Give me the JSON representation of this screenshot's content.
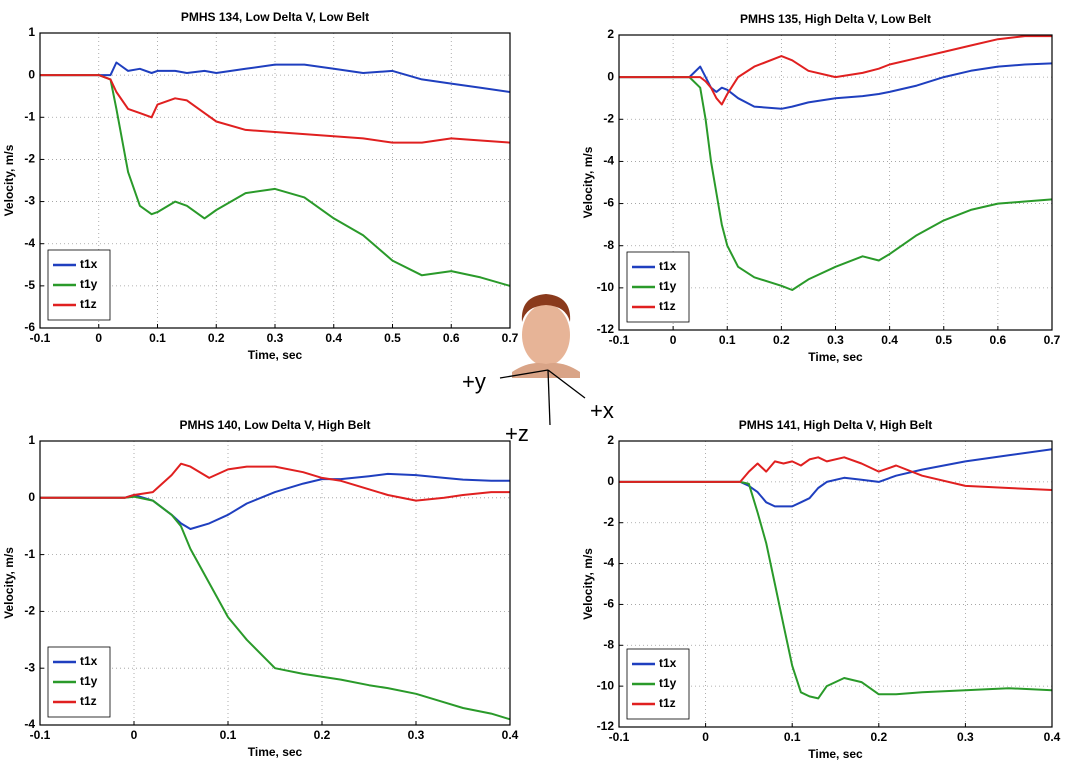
{
  "chart_data": [
    {
      "type": "line",
      "title": "PMHS 134, Low Delta V, Low Belt",
      "x_label": "Time, sec",
      "y_label": "Velocity, m/s",
      "x": [
        -0.1,
        0,
        0.02,
        0.03,
        0.05,
        0.07,
        0.09,
        0.1,
        0.13,
        0.15,
        0.18,
        0.2,
        0.25,
        0.3,
        0.35,
        0.4,
        0.45,
        0.5,
        0.55,
        0.6,
        0.65,
        0.7
      ],
      "series": [
        {
          "name": "t1x",
          "color": "#1f3fbf",
          "values": [
            0,
            0,
            0,
            0.3,
            0.1,
            0.15,
            0.05,
            0.1,
            0.1,
            0.05,
            0.1,
            0.05,
            0.15,
            0.25,
            0.25,
            0.15,
            0.05,
            0.1,
            -0.1,
            -0.2,
            -0.3,
            -0.4
          ]
        },
        {
          "name": "t1y",
          "color": "#2a9a2a",
          "values": [
            0,
            0,
            -0.1,
            -0.8,
            -2.3,
            -3.1,
            -3.3,
            -3.25,
            -3,
            -3.1,
            -3.4,
            -3.2,
            -2.8,
            -2.7,
            -2.9,
            -3.4,
            -3.8,
            -4.4,
            -4.75,
            -4.65,
            -4.8,
            -5
          ]
        },
        {
          "name": "t1z",
          "color": "#e02020",
          "values": [
            0,
            0,
            -0.1,
            -0.4,
            -0.8,
            -0.9,
            -1,
            -0.7,
            -0.55,
            -0.6,
            -0.9,
            -1.1,
            -1.3,
            -1.35,
            -1.4,
            -1.45,
            -1.5,
            -1.6,
            -1.6,
            -1.5,
            -1.55,
            -1.6
          ]
        }
      ],
      "xlim": [
        -0.1,
        0.7
      ],
      "xticks": [
        -0.1,
        0,
        0.1,
        0.2,
        0.3,
        0.4,
        0.5,
        0.6,
        0.7
      ],
      "ylim": [
        -6,
        1
      ],
      "yticks": [
        -6,
        -5,
        -4,
        -3,
        -2,
        -1,
        0,
        1
      ],
      "grid": true,
      "legend": "lower left"
    },
    {
      "type": "line",
      "title": "PMHS 135, High Delta V, Low Belt",
      "x_label": "Time, sec",
      "y_label": "Velocity, m/s",
      "x": [
        -0.1,
        0,
        0.03,
        0.05,
        0.06,
        0.07,
        0.08,
        0.09,
        0.1,
        0.12,
        0.15,
        0.2,
        0.22,
        0.25,
        0.3,
        0.35,
        0.38,
        0.4,
        0.45,
        0.5,
        0.55,
        0.6,
        0.65,
        0.7
      ],
      "series": [
        {
          "name": "t1x",
          "color": "#1f3fbf",
          "values": [
            0,
            0,
            0,
            0.5,
            0,
            -0.5,
            -0.7,
            -0.5,
            -0.6,
            -1,
            -1.4,
            -1.5,
            -1.4,
            -1.2,
            -1,
            -0.9,
            -0.8,
            -0.7,
            -0.4,
            0,
            0.3,
            0.5,
            0.6,
            0.65
          ]
        },
        {
          "name": "t1y",
          "color": "#2a9a2a",
          "values": [
            0,
            0,
            0,
            -0.5,
            -2,
            -4,
            -5.5,
            -7,
            -8,
            -9,
            -9.5,
            -9.9,
            -10.1,
            -9.6,
            -9,
            -8.5,
            -8.7,
            -8.4,
            -7.5,
            -6.8,
            -6.3,
            -6,
            -5.9,
            -5.8
          ]
        },
        {
          "name": "t1z",
          "color": "#e02020",
          "values": [
            0,
            0,
            0,
            0,
            -0.2,
            -0.5,
            -1,
            -1.3,
            -0.8,
            0,
            0.5,
            1,
            0.8,
            0.3,
            0,
            0.2,
            0.4,
            0.6,
            0.9,
            1.2,
            1.5,
            1.8,
            1.95,
            1.95
          ]
        }
      ],
      "xlim": [
        -0.1,
        0.7
      ],
      "xticks": [
        -0.1,
        0,
        0.1,
        0.2,
        0.3,
        0.4,
        0.5,
        0.6,
        0.7
      ],
      "ylim": [
        -12,
        2
      ],
      "yticks": [
        -12,
        -10,
        -8,
        -6,
        -4,
        -2,
        0,
        2
      ],
      "grid": true,
      "legend": "lower left"
    },
    {
      "type": "line",
      "title": "PMHS 140, Low Delta V, High Belt",
      "x_label": "Time, sec",
      "y_label": "Velocity, m/s",
      "x": [
        -0.1,
        -0.01,
        0,
        0.02,
        0.04,
        0.05,
        0.06,
        0.08,
        0.1,
        0.12,
        0.15,
        0.18,
        0.2,
        0.22,
        0.25,
        0.27,
        0.3,
        0.33,
        0.35,
        0.38,
        0.4
      ],
      "series": [
        {
          "name": "t1x",
          "color": "#1f3fbf",
          "values": [
            0,
            0,
            0.05,
            -0.05,
            -0.3,
            -0.45,
            -0.55,
            -0.45,
            -0.3,
            -0.1,
            0.1,
            0.25,
            0.33,
            0.33,
            0.38,
            0.42,
            0.4,
            0.35,
            0.32,
            0.3,
            0.3
          ]
        },
        {
          "name": "t1y",
          "color": "#2a9a2a",
          "values": [
            0,
            0,
            0.02,
            -0.05,
            -0.3,
            -0.5,
            -0.9,
            -1.5,
            -2.1,
            -2.5,
            -3,
            -3.1,
            -3.15,
            -3.2,
            -3.3,
            -3.35,
            -3.45,
            -3.6,
            -3.7,
            -3.8,
            -3.9
          ]
        },
        {
          "name": "t1z",
          "color": "#e02020",
          "values": [
            0,
            0,
            0.05,
            0.1,
            0.4,
            0.6,
            0.55,
            0.35,
            0.5,
            0.55,
            0.55,
            0.45,
            0.35,
            0.3,
            0.15,
            0.05,
            -0.05,
            0,
            0.05,
            0.1,
            0.1
          ]
        }
      ],
      "xlim": [
        -0.1,
        0.4
      ],
      "xticks": [
        -0.1,
        0,
        0.1,
        0.2,
        0.3,
        0.4
      ],
      "ylim": [
        -4,
        1
      ],
      "yticks": [
        -4,
        -3,
        -2,
        -1,
        0,
        1
      ],
      "grid": true,
      "legend": "lower left"
    },
    {
      "type": "line",
      "title": "PMHS 141, High Delta V, High Belt",
      "x_label": "Time, sec",
      "y_label": "Velocity, m/s",
      "x": [
        -0.1,
        0,
        0.04,
        0.05,
        0.06,
        0.07,
        0.08,
        0.09,
        0.1,
        0.11,
        0.12,
        0.13,
        0.14,
        0.16,
        0.18,
        0.2,
        0.22,
        0.25,
        0.3,
        0.35,
        0.4
      ],
      "series": [
        {
          "name": "t1x",
          "color": "#1f3fbf",
          "values": [
            0,
            0,
            0,
            -0.2,
            -0.5,
            -1,
            -1.2,
            -1.2,
            -1.2,
            -1,
            -0.8,
            -0.3,
            0,
            0.2,
            0.1,
            0,
            0.3,
            0.6,
            1,
            1.3,
            1.6
          ]
        },
        {
          "name": "t1y",
          "color": "#2a9a2a",
          "values": [
            0,
            0,
            0,
            -0.1,
            -1.5,
            -3,
            -5,
            -7,
            -9,
            -10.3,
            -10.5,
            -10.6,
            -10,
            -9.6,
            -9.8,
            -10.4,
            -10.4,
            -10.3,
            -10.2,
            -10.1,
            -10.2
          ]
        },
        {
          "name": "t1z",
          "color": "#e02020",
          "values": [
            0,
            0,
            0,
            0.5,
            0.9,
            0.5,
            1,
            0.9,
            1,
            0.8,
            1.1,
            1.2,
            1,
            1.2,
            0.9,
            0.5,
            0.8,
            0.3,
            -0.2,
            -0.3,
            -0.4
          ]
        }
      ],
      "xlim": [
        -0.1,
        0.4
      ],
      "xticks": [
        -0.1,
        0,
        0.1,
        0.2,
        0.3,
        0.4
      ],
      "ylim": [
        -12,
        2
      ],
      "yticks": [
        -12,
        -10,
        -8,
        -6,
        -4,
        -2,
        0,
        2
      ],
      "grid": true,
      "legend": "lower left"
    }
  ],
  "figure": {
    "axis_labels": [
      "+y",
      "+z",
      "+x"
    ]
  }
}
